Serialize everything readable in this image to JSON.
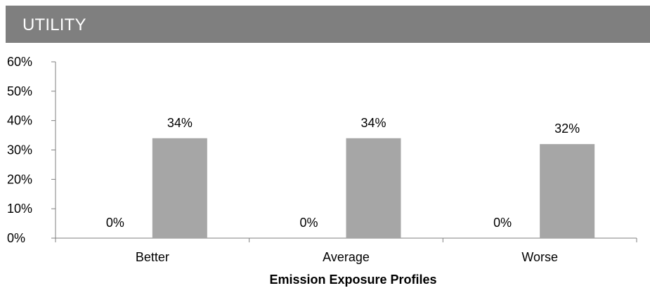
{
  "header": {
    "title": "UTILITY"
  },
  "colors": {
    "header_bg": "#7f7f7f",
    "bar": "#a6a6a6",
    "axis": "#7f7f7f"
  },
  "chart_data": {
    "type": "bar",
    "title": "",
    "xlabel": "Emission Exposure Profiles",
    "ylabel": "",
    "ylim": [
      0,
      60
    ],
    "y_ticks": [
      "0%",
      "10%",
      "20%",
      "30%",
      "40%",
      "50%",
      "60%"
    ],
    "y_tick_values": [
      0,
      10,
      20,
      30,
      40,
      50,
      60
    ],
    "categories": [
      "Better",
      "Average",
      "Worse"
    ],
    "grid": false,
    "legend": "none",
    "series": [
      {
        "values": [
          0,
          0,
          0
        ],
        "labels": [
          "0%",
          "0%",
          "0%"
        ]
      },
      {
        "values": [
          34,
          34,
          32
        ],
        "labels": [
          "34%",
          "34%",
          "32%"
        ]
      }
    ]
  }
}
